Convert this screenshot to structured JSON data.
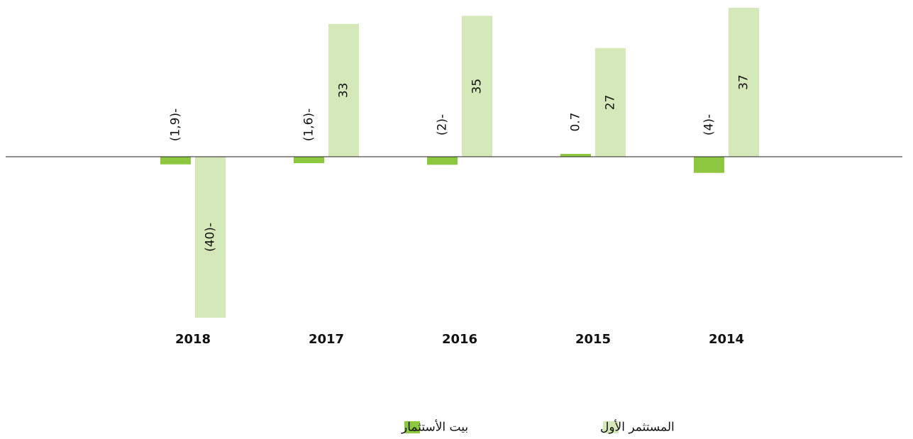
{
  "chart_data": {
    "type": "bar",
    "categories": [
      "2018",
      "2017",
      "2016",
      "2015",
      "2014"
    ],
    "series": [
      {
        "name": "بيت الأستثمار",
        "color": "#8dc63f",
        "values": [
          -1.9,
          -1.6,
          -2,
          0.7,
          -4
        ],
        "value_labels": [
          "(1,9)-",
          "(1,6)-",
          "(2)-",
          "0.7",
          "(4)-"
        ]
      },
      {
        "name": "المستثمر الأول",
        "color": "#d5e8b9",
        "values": [
          -40,
          33,
          35,
          27,
          37
        ],
        "value_labels": [
          "(40)-",
          "33",
          "35",
          "27",
          "37"
        ]
      }
    ],
    "ylim": [
      -40,
      37
    ]
  }
}
